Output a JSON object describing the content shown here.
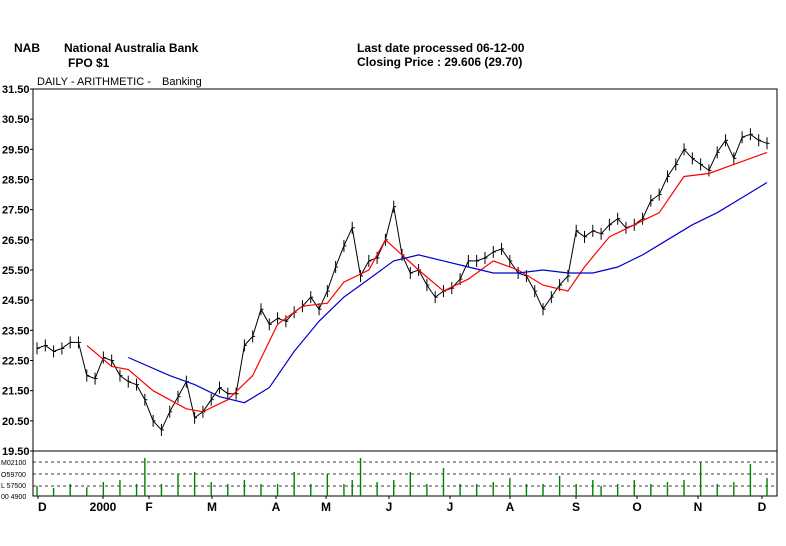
{
  "header": {
    "ticker": "NAB",
    "company": "National Australia Bank",
    "security": "FPO $1",
    "last_date": "Last date processed 06-12-00",
    "closing_price": "Closing Price : 29.606  (29.70)"
  },
  "subheader": {
    "mode": "DAILY  - ARITHMETIC -",
    "sector": "Banking"
  },
  "chart_data": {
    "type": "line",
    "ylim": [
      19.5,
      31.5
    ],
    "y_ticks": [
      "31.50",
      "30.50",
      "29.50",
      "28.50",
      "27.50",
      "26.50",
      "25.50",
      "24.50",
      "23.50",
      "22.50",
      "21.50",
      "20.50",
      "19.50"
    ],
    "x_ticks": [
      "D",
      "2000",
      "F",
      "M",
      "A",
      "M",
      "J",
      "J",
      "A",
      "S",
      "O",
      "N",
      "D"
    ],
    "volume_labels": [
      "M02100",
      "O59700",
      "L 57500",
      "00 4900"
    ],
    "colors": {
      "price": "#000000",
      "ma_short": "#ff0000",
      "ma_long": "#0000cc",
      "volume": "#008000",
      "grid": "#000000"
    },
    "series": [
      {
        "key": "price",
        "x": [
          0,
          3,
          6,
          9,
          12,
          15,
          18,
          21,
          24,
          27,
          30,
          33,
          36,
          39,
          42,
          45,
          48,
          51,
          54,
          57,
          60,
          63,
          66,
          69,
          72,
          75,
          78,
          81,
          84,
          87,
          90,
          93,
          96,
          99,
          102,
          105,
          108,
          111,
          114,
          117,
          120,
          123,
          126,
          129,
          132,
          135,
          138,
          141,
          144,
          147,
          150,
          153,
          156,
          159,
          162,
          165,
          168,
          171,
          174,
          177,
          180,
          183,
          186,
          189,
          192,
          195,
          198,
          201,
          204,
          207,
          210,
          213,
          216,
          219,
          222,
          225,
          228,
          231,
          234,
          237,
          240,
          243,
          246,
          249,
          252,
          255,
          258,
          261,
          264
        ],
        "values": [
          22.9,
          23.0,
          22.8,
          22.9,
          23.1,
          23.1,
          22.0,
          21.9,
          22.6,
          22.5,
          22.0,
          21.8,
          21.7,
          21.2,
          20.5,
          20.2,
          20.8,
          21.3,
          21.8,
          20.6,
          20.8,
          21.2,
          21.6,
          21.4,
          21.4,
          23.0,
          23.3,
          24.2,
          23.7,
          23.9,
          23.8,
          24.1,
          24.3,
          24.6,
          24.2,
          24.8,
          25.6,
          26.3,
          26.9,
          25.3,
          25.8,
          25.9,
          26.5,
          27.6,
          26.0,
          25.4,
          25.5,
          25.0,
          24.6,
          24.8,
          24.9,
          25.2,
          25.8,
          25.8,
          25.9,
          26.1,
          26.2,
          25.8,
          25.4,
          25.3,
          24.8,
          24.2,
          24.6,
          25.0,
          25.3,
          26.8,
          26.6,
          26.8,
          26.7,
          27.0,
          27.2,
          26.9,
          27.0,
          27.2,
          27.8,
          28.0,
          28.6,
          29.0,
          29.5,
          29.2,
          29.0,
          28.8,
          29.4,
          29.8,
          29.2,
          29.9,
          30.0,
          29.8,
          29.7
        ]
      },
      {
        "key": "ma_short",
        "x": [
          18,
          27,
          33,
          42,
          54,
          60,
          69,
          78,
          87,
          96,
          105,
          111,
          120,
          126,
          138,
          147,
          156,
          165,
          174,
          183,
          192,
          198,
          207,
          216,
          225,
          234,
          243,
          252,
          264
        ],
        "values": [
          23.0,
          22.3,
          22.2,
          21.5,
          20.9,
          20.8,
          21.2,
          22.0,
          23.7,
          24.3,
          24.4,
          25.1,
          25.5,
          26.5,
          25.5,
          24.8,
          25.2,
          25.8,
          25.5,
          25.0,
          24.8,
          25.6,
          26.6,
          27.0,
          27.4,
          28.6,
          28.7,
          29.0,
          29.4
        ]
      },
      {
        "key": "ma_long",
        "x": [
          33,
          48,
          57,
          66,
          75,
          84,
          93,
          102,
          111,
          120,
          129,
          138,
          147,
          156,
          165,
          174,
          183,
          192,
          201,
          210,
          219,
          228,
          237,
          246,
          255,
          264
        ],
        "values": [
          22.6,
          22.0,
          21.7,
          21.3,
          21.1,
          21.6,
          22.8,
          23.8,
          24.6,
          25.2,
          25.8,
          26.0,
          25.8,
          25.6,
          25.4,
          25.4,
          25.5,
          25.4,
          25.4,
          25.6,
          26.0,
          26.5,
          27.0,
          27.4,
          27.9,
          28.4
        ]
      }
    ],
    "volume": {
      "x": [
        0,
        6,
        12,
        18,
        24,
        30,
        36,
        39,
        45,
        51,
        57,
        63,
        69,
        75,
        81,
        87,
        93,
        99,
        105,
        111,
        114,
        117,
        123,
        129,
        135,
        141,
        147,
        153,
        159,
        165,
        171,
        177,
        183,
        189,
        195,
        201,
        204,
        210,
        216,
        222,
        228,
        234,
        240,
        246,
        252,
        258,
        264
      ],
      "values": [
        0.25,
        0.2,
        0.3,
        0.22,
        0.35,
        0.4,
        0.3,
        0.95,
        0.3,
        0.55,
        0.6,
        0.35,
        0.3,
        0.4,
        0.3,
        0.3,
        0.6,
        0.3,
        0.55,
        0.3,
        0.4,
        0.95,
        0.35,
        0.4,
        0.6,
        0.3,
        0.7,
        0.3,
        0.3,
        0.35,
        0.45,
        0.3,
        0.3,
        0.5,
        0.3,
        0.4,
        0.25,
        0.3,
        0.4,
        0.3,
        0.35,
        0.4,
        0.85,
        0.3,
        0.35,
        0.8,
        0.45
      ]
    }
  }
}
